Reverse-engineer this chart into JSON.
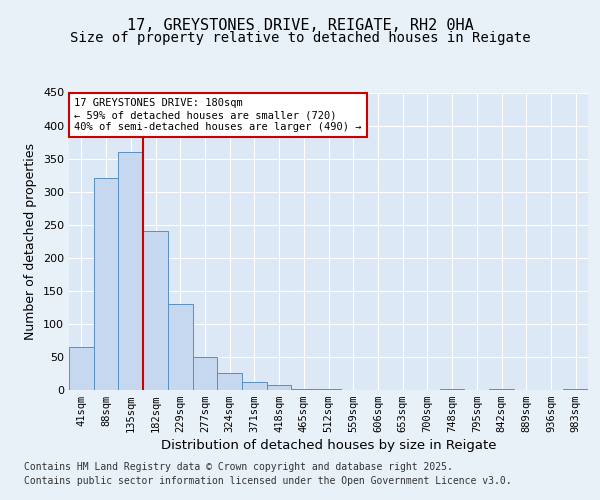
{
  "title1": "17, GREYSTONES DRIVE, REIGATE, RH2 0HA",
  "title2": "Size of property relative to detached houses in Reigate",
  "xlabel": "Distribution of detached houses by size in Reigate",
  "ylabel": "Number of detached properties",
  "categories": [
    "41sqm",
    "88sqm",
    "135sqm",
    "182sqm",
    "229sqm",
    "277sqm",
    "324sqm",
    "371sqm",
    "418sqm",
    "465sqm",
    "512sqm",
    "559sqm",
    "606sqm",
    "653sqm",
    "700sqm",
    "748sqm",
    "795sqm",
    "842sqm",
    "889sqm",
    "936sqm",
    "983sqm"
  ],
  "values": [
    65,
    320,
    360,
    240,
    130,
    50,
    25,
    12,
    8,
    2,
    1,
    0,
    0,
    0,
    0,
    1,
    0,
    1,
    0,
    0,
    1
  ],
  "bar_color": "#c5d8f0",
  "bar_edge_color": "#5a8fc0",
  "property_bin_index": 3,
  "vline_color": "#cc0000",
  "annotation_text": "17 GREYSTONES DRIVE: 180sqm\n← 59% of detached houses are smaller (720)\n40% of semi-detached houses are larger (490) →",
  "annotation_box_color": "#ffffff",
  "annotation_box_edge": "#cc0000",
  "ylim": [
    0,
    450
  ],
  "yticks": [
    0,
    50,
    100,
    150,
    200,
    250,
    300,
    350,
    400,
    450
  ],
  "footer_line1": "Contains HM Land Registry data © Crown copyright and database right 2025.",
  "footer_line2": "Contains public sector information licensed under the Open Government Licence v3.0.",
  "bg_color": "#e8f0f8",
  "plot_bg_color": "#dce8f5",
  "grid_color": "#ffffff",
  "title_fontsize": 11,
  "subtitle_fontsize": 10,
  "axis_label_fontsize": 9,
  "tick_fontsize": 7.5,
  "footer_fontsize": 7
}
